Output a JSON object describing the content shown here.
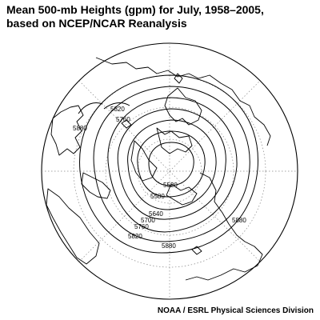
{
  "header": {
    "title_line1": "Mean 500-mb Heights (gpm) for July, 1958–2005,",
    "title_line2": "based on NCEP/NCAR Reanalysis"
  },
  "footer": {
    "credit": "NOAA / ESRL Physical Sciences Division"
  },
  "map": {
    "projection": "polar-stereographic",
    "hemisphere": "northern",
    "contour_labels": [
      "5820",
      "5760",
      "5880",
      "5520",
      "5580",
      "5640",
      "5700",
      "5760",
      "5820",
      "5880",
      "5880"
    ],
    "colors": {
      "lines": "#000000",
      "grid": "#999999",
      "background": "#ffffff"
    }
  }
}
